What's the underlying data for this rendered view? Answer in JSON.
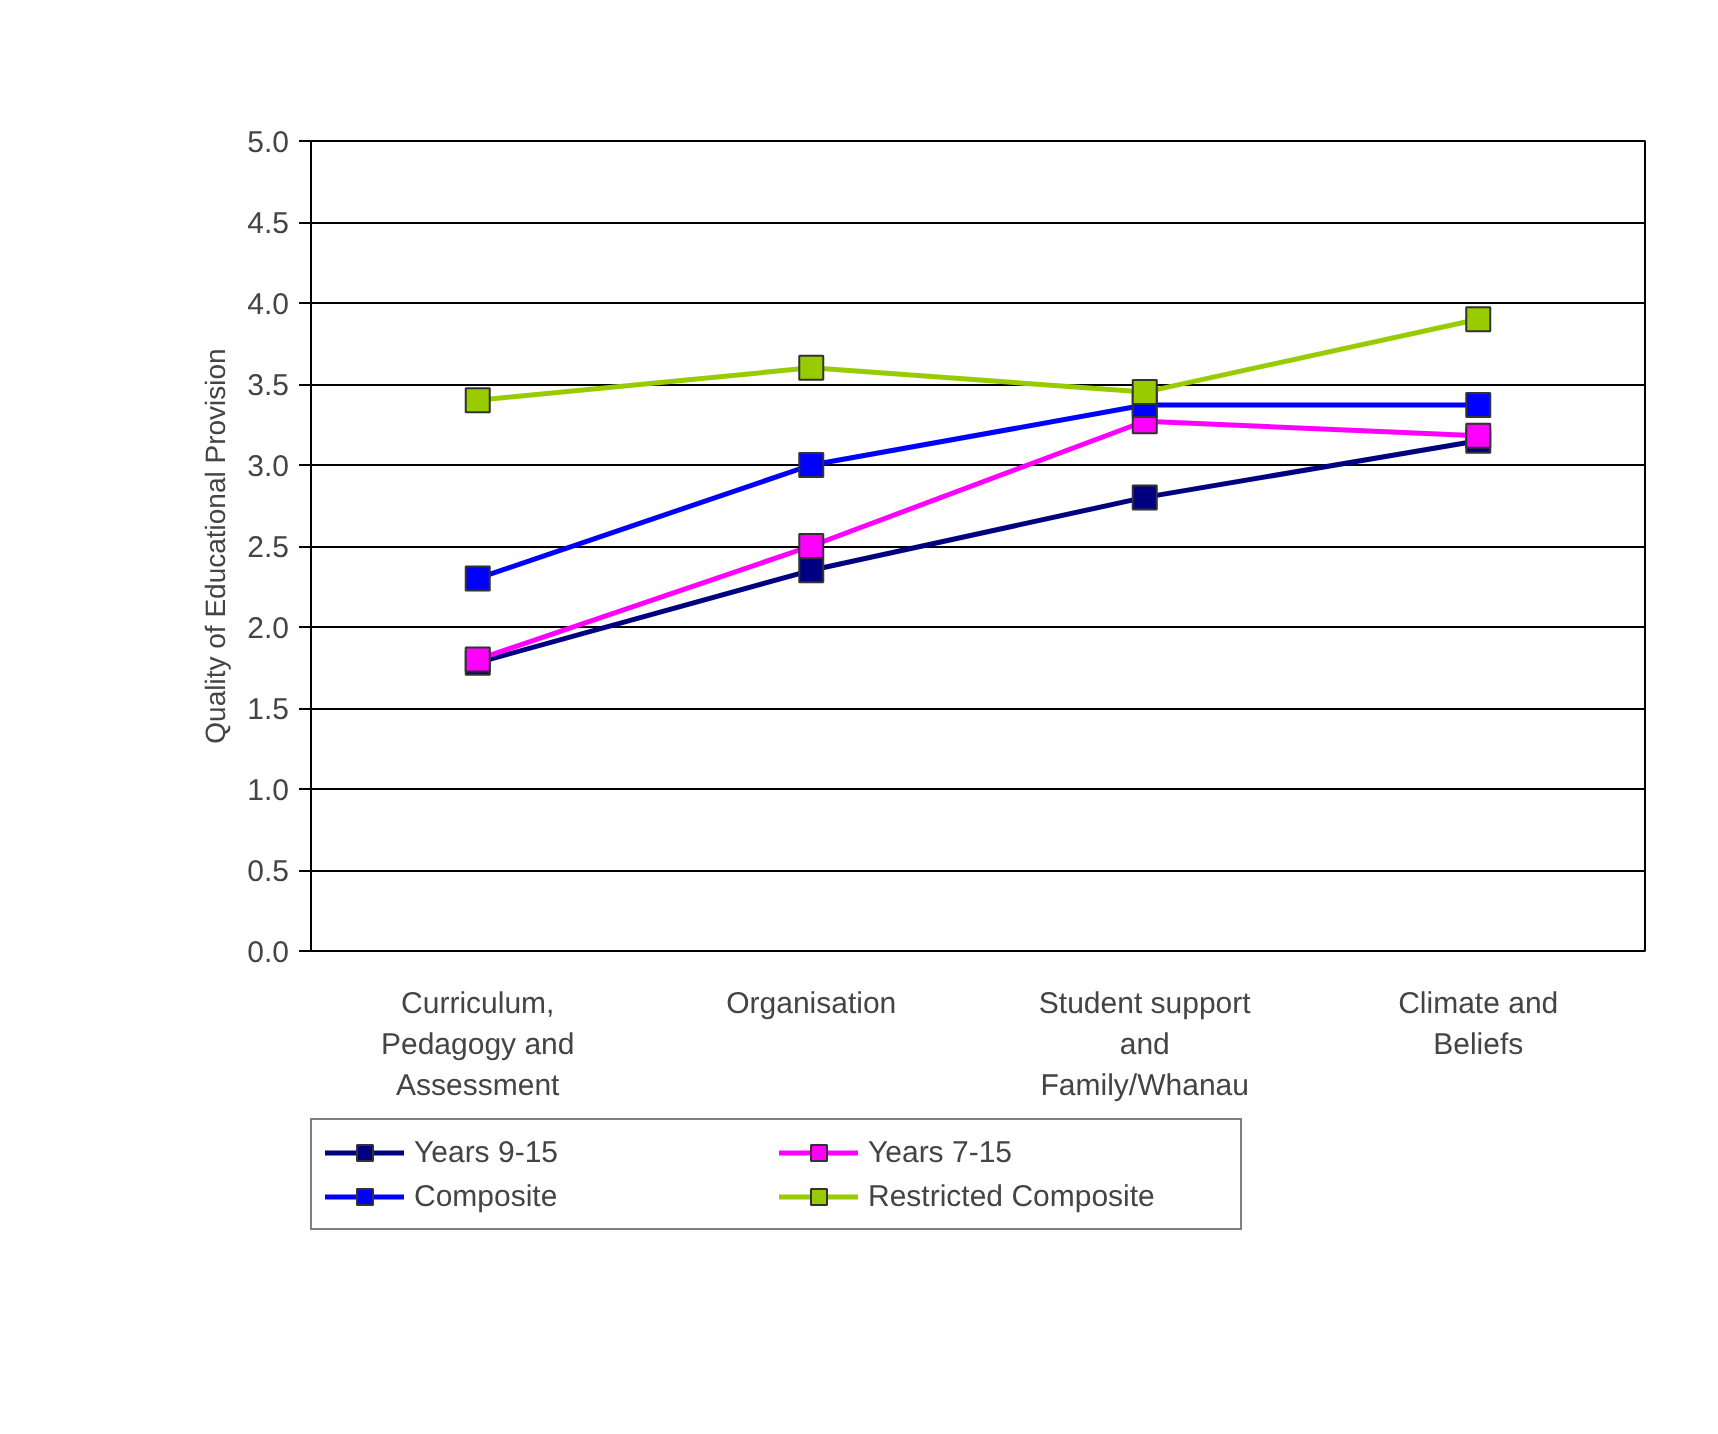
{
  "chart_data": {
    "type": "line",
    "ylabel": "Quality of Educational Provision",
    "categories": [
      "Curriculum, Pedagogy and Assessment",
      "Organisation",
      "Student support and Family/Whanau",
      "Climate and Beliefs"
    ],
    "series": [
      {
        "name": "Years 9-15",
        "color": "#000080",
        "values": [
          1.78,
          2.35,
          2.8,
          3.15
        ]
      },
      {
        "name": "Years 7-15",
        "color": "#ff00ff",
        "values": [
          1.8,
          2.5,
          3.27,
          3.18
        ]
      },
      {
        "name": "Composite",
        "color": "#0000ff",
        "values": [
          2.3,
          3.0,
          3.37,
          3.37
        ]
      },
      {
        "name": "Restricted Composite",
        "color": "#99cc00",
        "values": [
          3.4,
          3.6,
          3.45,
          3.9
        ]
      }
    ],
    "ylim": [
      0,
      5
    ],
    "yticks": [
      {
        "value": 0,
        "label": "0.0"
      },
      {
        "value": 0.5,
        "label": "0.5"
      },
      {
        "value": 1,
        "label": "1.0"
      },
      {
        "value": 1.5,
        "label": "1.5"
      },
      {
        "value": 2,
        "label": "2.0"
      },
      {
        "value": 2.5,
        "label": "2.5"
      },
      {
        "value": 3,
        "label": "3.0"
      },
      {
        "value": 3.5,
        "label": "3.5"
      },
      {
        "value": 4,
        "label": "4.0"
      },
      {
        "value": 4.5,
        "label": "4.5"
      },
      {
        "value": 5,
        "label": "5.0"
      }
    ],
    "grid": "y",
    "legend": "bottom",
    "marker": "square",
    "line_style": "solid"
  }
}
